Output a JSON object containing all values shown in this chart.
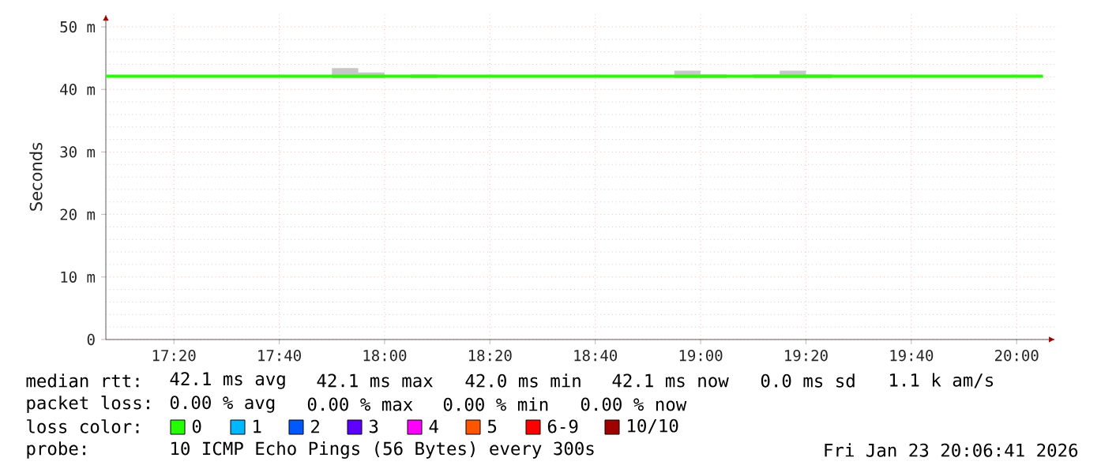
{
  "chart_data": {
    "type": "line",
    "ylabel": "Seconds",
    "xlim": [
      17.118,
      20.122
    ],
    "ylim": [
      0,
      52
    ],
    "xticks": [
      {
        "value": 17.3333,
        "label": "17:20"
      },
      {
        "value": 17.6667,
        "label": "17:40"
      },
      {
        "value": 18.0,
        "label": "18:00"
      },
      {
        "value": 18.3333,
        "label": "18:20"
      },
      {
        "value": 18.6667,
        "label": "18:40"
      },
      {
        "value": 19.0,
        "label": "19:00"
      },
      {
        "value": 19.3333,
        "label": "19:20"
      },
      {
        "value": 19.6667,
        "label": "19:40"
      },
      {
        "value": 20.0,
        "label": "20:00"
      }
    ],
    "yticks": [
      0,
      {
        "value": 10,
        "label": "10 m"
      },
      {
        "value": 20,
        "label": "20 m"
      },
      {
        "value": 30,
        "label": "30 m"
      },
      {
        "value": 40,
        "label": "40 m"
      },
      {
        "value": 50,
        "label": "50 m"
      }
    ],
    "grid": true,
    "x": [
      17.118,
      17.8333,
      17.9167,
      17.9167,
      18.0,
      18.0,
      18.0833,
      18.1667,
      18.1667,
      18.9167,
      19.0,
      19.0,
      19.0833,
      19.0833,
      19.1667,
      19.25,
      19.25,
      19.3333,
      19.3333,
      19.4167,
      19.4167,
      20.0833
    ],
    "series": [
      {
        "color": "#26ff00",
        "values": [
          42.1,
          42.1,
          42.1,
          42.1,
          42.1,
          42.1,
          42.1,
          42.1,
          42.1,
          42.1,
          42.1,
          42.1,
          42.1,
          42.1,
          42.1,
          42.1,
          42.1,
          42.1,
          42.1,
          42.1,
          42.1,
          42.1
        ],
        "lower": [
          null,
          41.8,
          41.8,
          41.8,
          41.8,
          null,
          41.8,
          41.8,
          null,
          41.8,
          41.8,
          41.8,
          41.8,
          null,
          41.8,
          41.8,
          41.8,
          41.8,
          41.8,
          41.8,
          null,
          null
        ],
        "upper": [
          null,
          43.4,
          43.4,
          42.7,
          42.7,
          null,
          42.4,
          42.4,
          null,
          43.0,
          43.0,
          42.4,
          42.4,
          null,
          42.4,
          42.4,
          43.0,
          43.0,
          42.4,
          42.4,
          null,
          null
        ]
      }
    ],
    "annotations": [
      "median rtt:",
      "42.1 ms avg",
      "42.1 ms max",
      "42.0 ms min",
      "42.1 ms now",
      "0.0 ms sd",
      "1.1 k am/s",
      "packet loss:",
      "0.00 % avg",
      "0.00 % max",
      "0.00 % min",
      "0.00 % now",
      "loss color:",
      "0",
      "1",
      "2",
      "3",
      "4",
      "5",
      "6-9",
      "10/10",
      "probe:",
      "10 ICMP Echo Pings (56 Bytes) every 300s",
      "Fri Jan 23 20:06:41 2026"
    ]
  }
}
